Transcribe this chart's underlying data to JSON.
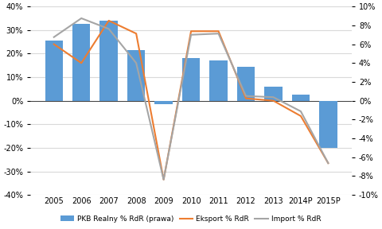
{
  "years": [
    "2005",
    "2006",
    "2007",
    "2008",
    "2009",
    "2010",
    "2011",
    "2012",
    "2013",
    "2014P",
    "2015P"
  ],
  "pkb": [
    25.5,
    32.5,
    34.0,
    21.5,
    -1.5,
    18.0,
    17.0,
    14.5,
    6.0,
    2.5,
    -20.0
  ],
  "eksport": [
    24.0,
    16.0,
    34.0,
    28.5,
    -33.5,
    29.5,
    29.5,
    1.0,
    0.0,
    -6.5,
    -26.5
  ],
  "import": [
    27.0,
    35.0,
    30.5,
    16.0,
    -33.5,
    28.0,
    28.5,
    2.0,
    1.5,
    -4.5,
    -26.5
  ],
  "bar_color": "#5B9BD5",
  "eksport_color": "#ED7D31",
  "import_color": "#A5A5A5",
  "left_ylim": [
    -40,
    40
  ],
  "right_ylim": [
    -10,
    10
  ],
  "left_yticks": [
    -40,
    -30,
    -20,
    -10,
    0,
    10,
    20,
    30,
    40
  ],
  "right_yticks": [
    -10,
    -8,
    -6,
    -4,
    -2,
    0,
    2,
    4,
    6,
    8,
    10
  ],
  "legend_labels": [
    "PKB Realny % RdR (prawa)",
    "Eksport % RdR",
    "Import % RdR"
  ],
  "bg_color": "#FFFFFF",
  "grid_color": "#D9D9D9"
}
